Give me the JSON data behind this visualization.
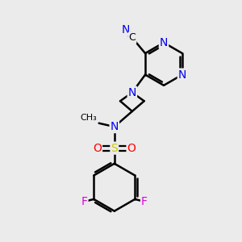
{
  "background_color": "#ebebeb",
  "atom_colors": {
    "N": "#0000ee",
    "O": "#ff0000",
    "S": "#cccc00",
    "F": "#dd00dd",
    "C": "#000000"
  },
  "bond_color": "#000000",
  "bond_width": 1.8,
  "figsize": [
    3.0,
    3.0
  ],
  "dpi": 100
}
